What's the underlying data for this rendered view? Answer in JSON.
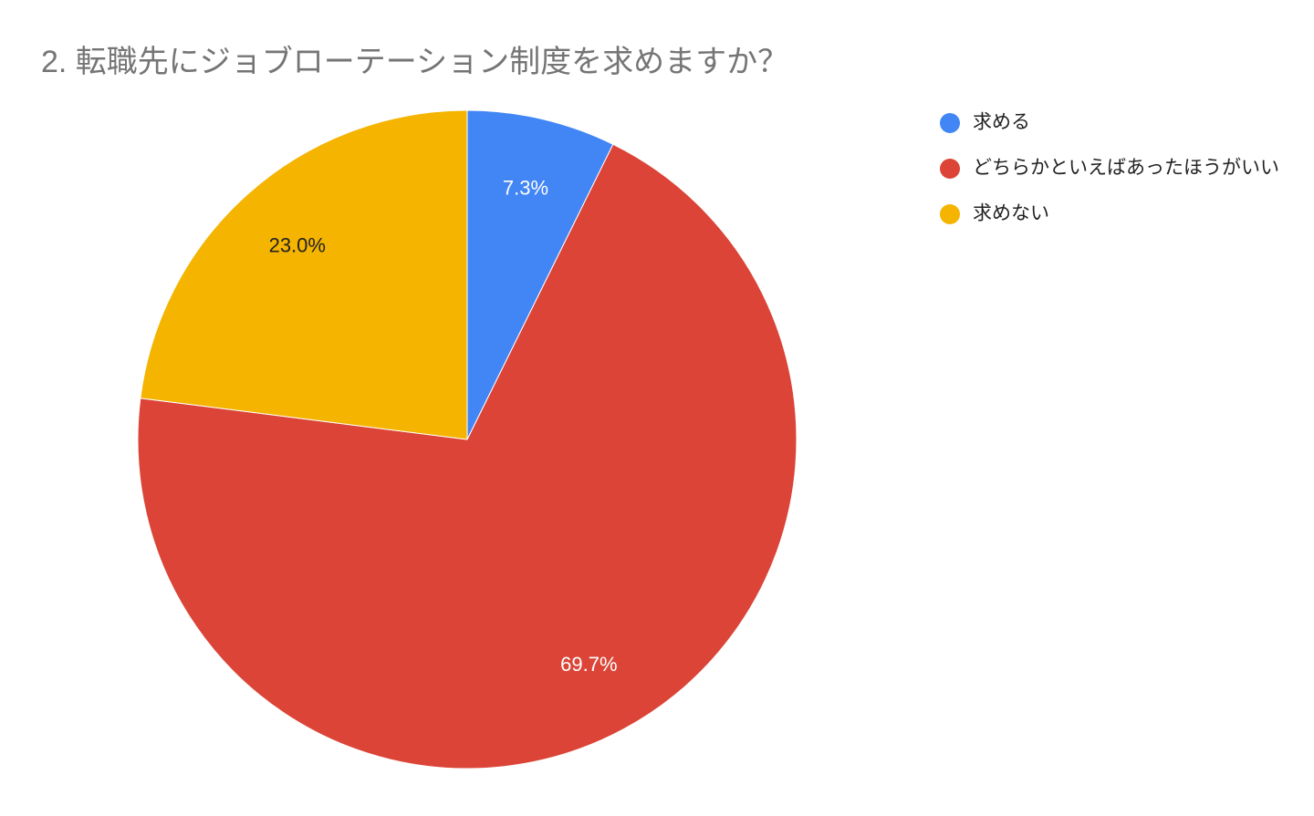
{
  "chart_data": {
    "type": "pie",
    "title": "2. 転職先にジョブローテーション制度を求めますか？",
    "categories": [
      "求める",
      "どちらかといえばあったほうがいい",
      "求めない"
    ],
    "values": [
      7.3,
      69.7,
      23.0
    ],
    "value_labels": [
      "7.3%",
      "69.7%",
      "23.0%"
    ],
    "colors": [
      "#4285f4",
      "#db4437",
      "#f4b400"
    ],
    "legend": "right"
  }
}
